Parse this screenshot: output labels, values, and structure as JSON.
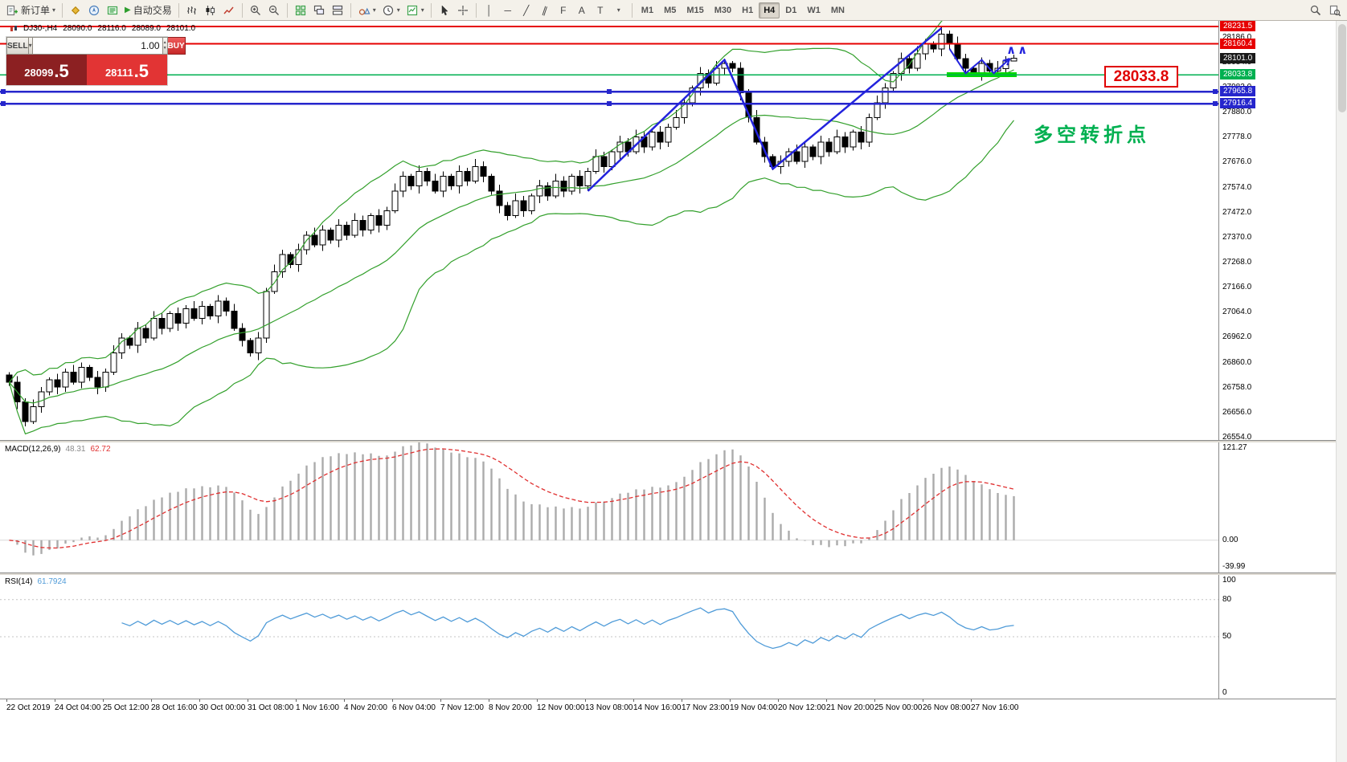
{
  "toolbar": {
    "new_order_label": "新订单",
    "autotrading_label": "自动交易",
    "timeframes": [
      "M1",
      "M5",
      "M15",
      "M30",
      "H1",
      "H4",
      "D1",
      "W1",
      "MN"
    ],
    "active_timeframe": "H4"
  },
  "icons": {
    "dropdown": "▾",
    "spin_up": "▲",
    "spin_down": "▼",
    "autotrading_play": "▶",
    "vertical_line": "│",
    "horizontal_line": "─",
    "trendline": "╱",
    "channel": "∥",
    "fibonacci": "F",
    "text_tool": "A",
    "label_tool": "T",
    "more_tools": "▾"
  },
  "trade_panel": {
    "sell_label": "SELL",
    "buy_label": "BUY",
    "volume": "1.00",
    "sell_price_main": "28099",
    "sell_price_frac": ".5",
    "buy_price_main": "28111",
    "buy_price_frac": ".5"
  },
  "chart_header": {
    "symbol_period": "DJ30-,H4",
    "open": "28090.0",
    "high": "28116.0",
    "low": "28089.0",
    "close": "28101.0"
  },
  "annotations": {
    "turning_point_text": "多空转折点",
    "price_callout": "28033.8",
    "carets": "∧∧"
  },
  "indicators": {
    "macd": {
      "label": "MACD(12,26,9)",
      "main_value": "48.31",
      "signal_value": "62.72",
      "scale": [
        "121.27",
        "0.00",
        "-39.99"
      ],
      "params": {
        "fast": 12,
        "slow": 26,
        "signal": 9
      }
    },
    "rsi": {
      "label": "RSI(14)",
      "value": "61.7924",
      "period": 14,
      "levels": [
        80,
        50
      ],
      "scale": [
        "100",
        "80",
        "50",
        "0"
      ]
    }
  },
  "price_scale": {
    "current_price": "28101.0",
    "ticks": [
      "28186.0",
      "28084.0",
      "27982.0",
      "27880.0",
      "27778.0",
      "27676.0",
      "27574.0",
      "27472.0",
      "27370.0",
      "27268.0",
      "27166.0",
      "27064.0",
      "26962.0",
      "26860.0",
      "26758.0",
      "26656.0",
      "26554.0"
    ]
  },
  "chart_data": {
    "type": "candlestick",
    "symbol": "DJ30-",
    "timeframe": "H4",
    "axis": {
      "price_max": 28254,
      "price_min": 26544
    },
    "bollinger": {
      "period": 20,
      "deviation": 2,
      "color": "#33a02c"
    },
    "hlines": [
      {
        "price": 28231.5,
        "label": "28231.5",
        "color": "#e60000",
        "width": 2
      },
      {
        "price": 28160.4,
        "label": "28160.4",
        "color": "#e60000",
        "width": 2
      },
      {
        "price": 28033.8,
        "label": "28033.8",
        "color": "#00b050",
        "width": 1.5
      },
      {
        "price": 27965.8,
        "label": "27965.8",
        "color": "#2626cc",
        "width": 2.5,
        "handles": true
      },
      {
        "price": 27916.4,
        "label": "27916.4",
        "color": "#2626cc",
        "width": 2.5,
        "handles": true
      }
    ],
    "green_zone": {
      "from_candle": 117,
      "to_candle": 125,
      "price": 28033.8,
      "color": "#00d800"
    },
    "trendlines": [
      {
        "points": [
          [
            72,
            27560
          ],
          [
            89,
            28095
          ],
          [
            95,
            27650
          ],
          [
            116,
            28225
          ]
        ],
        "color": "#2323dd",
        "width": 2.5
      },
      {
        "points": [
          [
            117,
            28140
          ],
          [
            119,
            28040
          ],
          [
            121,
            28095
          ],
          [
            122.5,
            28040
          ],
          [
            124.5,
            28100
          ]
        ],
        "color": "#2323dd",
        "width": 2,
        "arrow": true
      }
    ],
    "time_labels": [
      "22 Oct 2019",
      "24 Oct 04:00",
      "25 Oct 12:00",
      "28 Oct 16:00",
      "30 Oct 00:00",
      "31 Oct 08:00",
      "1 Nov 16:00",
      "4 Nov 20:00",
      "6 Nov 04:00",
      "7 Nov 12:00",
      "8 Nov 20:00",
      "12 Nov 00:00",
      "13 Nov 08:00",
      "14 Nov 16:00",
      "17 Nov 23:00",
      "19 Nov 04:00",
      "20 Nov 12:00",
      "21 Nov 20:00",
      "25 Nov 00:00",
      "26 Nov 08:00",
      "27 Nov 16:00"
    ],
    "candles": [
      [
        26810,
        26820,
        26765,
        26780
      ],
      [
        26780,
        26805,
        26670,
        26700
      ],
      [
        26700,
        26715,
        26600,
        26620
      ],
      [
        26620,
        26710,
        26610,
        26680
      ],
      [
        26680,
        26760,
        26655,
        26740
      ],
      [
        26740,
        26800,
        26725,
        26790
      ],
      [
        26790,
        26815,
        26730,
        26760
      ],
      [
        26760,
        26835,
        26740,
        26820
      ],
      [
        26820,
        26850,
        26770,
        26780
      ],
      [
        26780,
        26860,
        26755,
        26840
      ],
      [
        26840,
        26850,
        26785,
        26800
      ],
      [
        26800,
        26825,
        26730,
        26760
      ],
      [
        26760,
        26835,
        26740,
        26820
      ],
      [
        26820,
        26930,
        26810,
        26900
      ],
      [
        26900,
        26980,
        26875,
        26960
      ],
      [
        26960,
        26970,
        26915,
        26930
      ],
      [
        26930,
        27025,
        26900,
        27000
      ],
      [
        27000,
        27015,
        26940,
        26960
      ],
      [
        26960,
        27070,
        26950,
        27040
      ],
      [
        27040,
        27060,
        26975,
        27000
      ],
      [
        27000,
        27070,
        26985,
        27060
      ],
      [
        27060,
        27085,
        26990,
        27020
      ],
      [
        27020,
        27095,
        27000,
        27080
      ],
      [
        27080,
        27110,
        27030,
        27040
      ],
      [
        27040,
        27110,
        27015,
        27090
      ],
      [
        27090,
        27100,
        27035,
        27050
      ],
      [
        27050,
        27135,
        27020,
        27110
      ],
      [
        27110,
        27125,
        27050,
        27070
      ],
      [
        27070,
        27100,
        26990,
        27000
      ],
      [
        27000,
        27020,
        26925,
        26950
      ],
      [
        26950,
        26960,
        26885,
        26900
      ],
      [
        26900,
        26985,
        26870,
        26960
      ],
      [
        26960,
        27165,
        26940,
        27150
      ],
      [
        27150,
        27260,
        27140,
        27230
      ],
      [
        27230,
        27320,
        27205,
        27300
      ],
      [
        27300,
        27310,
        27245,
        27260
      ],
      [
        27260,
        27345,
        27230,
        27320
      ],
      [
        27320,
        27395,
        27300,
        27380
      ],
      [
        27380,
        27410,
        27330,
        27340
      ],
      [
        27340,
        27420,
        27315,
        27400
      ],
      [
        27400,
        27410,
        27345,
        27360
      ],
      [
        27360,
        27445,
        27330,
        27420
      ],
      [
        27420,
        27435,
        27360,
        27380
      ],
      [
        27380,
        27470,
        27370,
        27440
      ],
      [
        27440,
        27460,
        27375,
        27400
      ],
      [
        27400,
        27470,
        27385,
        27460
      ],
      [
        27460,
        27485,
        27390,
        27420
      ],
      [
        27420,
        27495,
        27400,
        27480
      ],
      [
        27480,
        27590,
        27470,
        27560
      ],
      [
        27560,
        27640,
        27535,
        27620
      ],
      [
        27620,
        27630,
        27565,
        27580
      ],
      [
        27580,
        27665,
        27550,
        27640
      ],
      [
        27640,
        27655,
        27580,
        27600
      ],
      [
        27600,
        27630,
        27550,
        27560
      ],
      [
        27560,
        27640,
        27535,
        27620
      ],
      [
        27620,
        27630,
        27565,
        27580
      ],
      [
        27580,
        27665,
        27550,
        27640
      ],
      [
        27640,
        27655,
        27580,
        27600
      ],
      [
        27600,
        27690,
        27590,
        27660
      ],
      [
        27660,
        27680,
        27595,
        27620
      ],
      [
        27620,
        27630,
        27545,
        27560
      ],
      [
        27560,
        27585,
        27470,
        27500
      ],
      [
        27500,
        27515,
        27440,
        27460
      ],
      [
        27460,
        27550,
        27450,
        27520
      ],
      [
        27520,
        27540,
        27455,
        27480
      ],
      [
        27480,
        27550,
        27465,
        27540
      ],
      [
        27540,
        27605,
        27510,
        27580
      ],
      [
        27580,
        27595,
        27520,
        27540
      ],
      [
        27540,
        27630,
        27530,
        27600
      ],
      [
        27600,
        27620,
        27535,
        27560
      ],
      [
        27560,
        27630,
        27545,
        27620
      ],
      [
        27620,
        27645,
        27550,
        27580
      ],
      [
        27580,
        27655,
        27560,
        27640
      ],
      [
        27640,
        27730,
        27630,
        27700
      ],
      [
        27700,
        27720,
        27635,
        27660
      ],
      [
        27660,
        27730,
        27645,
        27720
      ],
      [
        27720,
        27785,
        27690,
        27760
      ],
      [
        27760,
        27775,
        27700,
        27720
      ],
      [
        27720,
        27810,
        27710,
        27780
      ],
      [
        27780,
        27800,
        27715,
        27740
      ],
      [
        27740,
        27810,
        27725,
        27800
      ],
      [
        27800,
        27825,
        27730,
        27760
      ],
      [
        27760,
        27835,
        27740,
        27820
      ],
      [
        27820,
        27890,
        27810,
        27860
      ],
      [
        27860,
        27940,
        27835,
        27920
      ],
      [
        27920,
        27990,
        27905,
        27980
      ],
      [
        27980,
        28065,
        27950,
        28040
      ],
      [
        28040,
        28055,
        27980,
        28000
      ],
      [
        28000,
        28090,
        27990,
        28060
      ],
      [
        28060,
        28100,
        28035,
        28080
      ],
      [
        28080,
        28090,
        28045,
        28060
      ],
      [
        28060,
        28085,
        27930,
        27960
      ],
      [
        27960,
        27975,
        27840,
        27860
      ],
      [
        27860,
        27890,
        27750,
        27760
      ],
      [
        27760,
        27780,
        27675,
        27700
      ],
      [
        27700,
        27710,
        27645,
        27660
      ],
      [
        27660,
        27705,
        27630,
        27680
      ],
      [
        27680,
        27735,
        27660,
        27720
      ],
      [
        27720,
        27750,
        27670,
        27680
      ],
      [
        27680,
        27760,
        27655,
        27740
      ],
      [
        27740,
        27750,
        27685,
        27700
      ],
      [
        27700,
        27785,
        27670,
        27760
      ],
      [
        27760,
        27775,
        27700,
        27720
      ],
      [
        27720,
        27810,
        27710,
        27780
      ],
      [
        27780,
        27800,
        27715,
        27740
      ],
      [
        27740,
        27810,
        27725,
        27800
      ],
      [
        27800,
        27825,
        27730,
        27760
      ],
      [
        27760,
        27875,
        27740,
        27860
      ],
      [
        27860,
        27950,
        27850,
        27920
      ],
      [
        27920,
        28000,
        27895,
        27980
      ],
      [
        27980,
        28050,
        27965,
        28040
      ],
      [
        28040,
        28125,
        28010,
        28100
      ],
      [
        28100,
        28115,
        28040,
        28060
      ],
      [
        28060,
        28150,
        28050,
        28120
      ],
      [
        28120,
        28180,
        28095,
        28160
      ],
      [
        28160,
        28170,
        28125,
        28140
      ],
      [
        28140,
        28231,
        28110,
        28200
      ],
      [
        28200,
        28215,
        28140,
        28160
      ],
      [
        28160,
        28190,
        28090,
        28100
      ],
      [
        28100,
        28120,
        28035,
        28060
      ],
      [
        28060,
        28070,
        28025,
        28040
      ],
      [
        28040,
        28105,
        28010,
        28080
      ],
      [
        28080,
        28095,
        28030,
        28050
      ],
      [
        28050,
        28090,
        28040,
        28060
      ],
      [
        28060,
        28110,
        28035,
        28090
      ],
      [
        28090,
        28116,
        28089,
        28101
      ]
    ]
  }
}
